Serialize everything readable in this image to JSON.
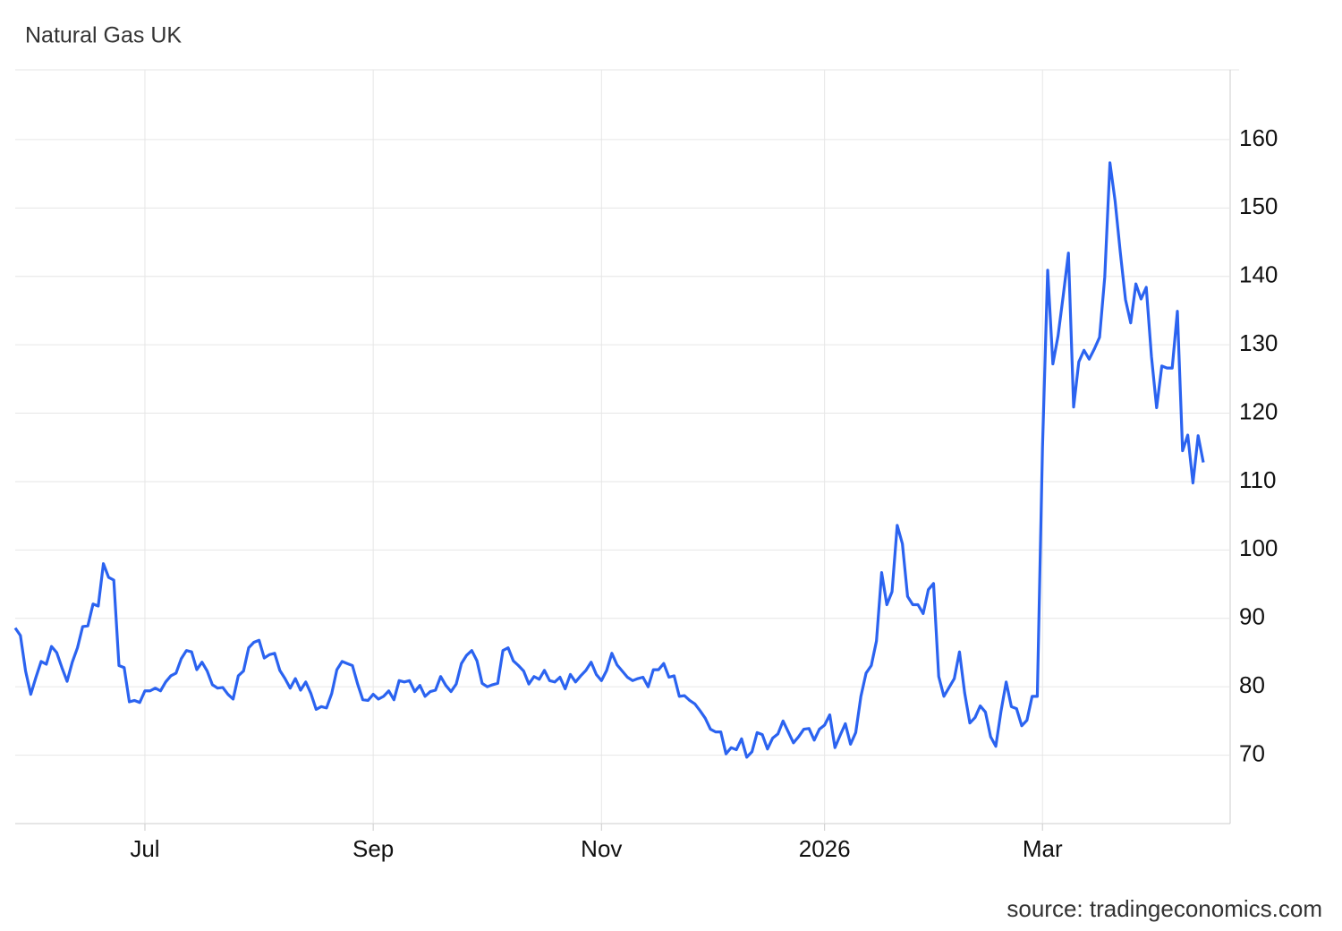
{
  "chart_data": {
    "type": "line",
    "title": "Natural Gas UK",
    "source": "source: tradingeconomics.com",
    "categories": [
      null,
      null,
      null,
      null,
      null,
      null,
      null,
      null,
      null,
      null,
      null,
      null,
      null,
      null,
      null,
      null,
      null,
      null,
      null,
      null,
      null,
      null,
      null,
      null,
      null,
      "Jul",
      null,
      null,
      null,
      null,
      null,
      null,
      null,
      null,
      null,
      null,
      null,
      null,
      null,
      null,
      null,
      null,
      null,
      null,
      null,
      null,
      null,
      null,
      null,
      null,
      null,
      null,
      null,
      null,
      null,
      null,
      null,
      null,
      null,
      null,
      null,
      null,
      null,
      null,
      null,
      null,
      null,
      null,
      null,
      "Sep",
      null,
      null,
      null,
      null,
      null,
      null,
      null,
      null,
      null,
      null,
      null,
      null,
      null,
      null,
      null,
      null,
      null,
      null,
      null,
      null,
      null,
      null,
      null,
      null,
      null,
      null,
      null,
      null,
      null,
      null,
      null,
      null,
      null,
      null,
      null,
      null,
      null,
      null,
      null,
      null,
      null,
      null,
      null,
      "Nov",
      null,
      null,
      null,
      null,
      null,
      null,
      null,
      null,
      null,
      null,
      null,
      null,
      null,
      null,
      null,
      null,
      null,
      null,
      null,
      null,
      null,
      null,
      null,
      null,
      null,
      null,
      null,
      null,
      null,
      null,
      null,
      null,
      null,
      null,
      null,
      null,
      null,
      null,
      null,
      null,
      null,
      null,
      "2026",
      null,
      null,
      null,
      null,
      null,
      null,
      null,
      null,
      null,
      null,
      null,
      null,
      null,
      null,
      null,
      null,
      null,
      null,
      null,
      null,
      null,
      null,
      null,
      null,
      null,
      null,
      null,
      null,
      null,
      null,
      null,
      null,
      null,
      null,
      null,
      null,
      null,
      null,
      null,
      null,
      null,
      "Mar",
      null,
      null,
      null,
      null,
      null,
      null,
      null,
      null,
      null,
      null,
      null,
      null,
      null,
      null,
      null,
      null,
      null,
      null,
      null,
      null,
      null,
      null,
      null,
      null,
      null,
      null,
      null,
      null,
      null,
      null,
      null
    ],
    "series": [
      {
        "name": "Natural Gas UK",
        "color": "#2b63f0",
        "values": [
          88.6,
          87.5,
          82.3,
          78.9,
          81.4,
          83.7,
          83.3,
          85.9,
          85,
          82.8,
          80.8,
          83.6,
          85.7,
          88.8,
          88.9,
          92.1,
          91.8,
          98,
          96,
          95.6,
          83.1,
          82.8,
          77.8,
          78,
          77.7,
          79.4,
          79.4,
          79.8,
          79.4,
          80.7,
          81.6,
          82,
          84.1,
          85.3,
          85.1,
          82.5,
          83.6,
          82.3,
          80.3,
          79.8,
          79.9,
          78.9,
          78.2,
          81.6,
          82.3,
          85.7,
          86.5,
          86.8,
          84.2,
          84.7,
          84.9,
          82.4,
          81.2,
          79.8,
          81.2,
          79.5,
          80.7,
          79,
          76.7,
          77.1,
          76.9,
          79,
          82.5,
          83.7,
          83.4,
          83.1,
          80.4,
          78.1,
          78,
          78.9,
          78.2,
          78.6,
          79.4,
          78.1,
          80.9,
          80.7,
          80.9,
          79.3,
          80.2,
          78.6,
          79.3,
          79.5,
          81.5,
          80.2,
          79.3,
          80.4,
          83.4,
          84.6,
          85.3,
          83.8,
          80.5,
          80,
          80.3,
          80.5,
          85.3,
          85.7,
          83.8,
          83.1,
          82.3,
          80.4,
          81.5,
          81.1,
          82.4,
          80.9,
          80.7,
          81.4,
          79.7,
          81.8,
          80.7,
          81.6,
          82.4,
          83.6,
          81.8,
          80.9,
          82.4,
          84.9,
          83.2,
          82.3,
          81.4,
          80.9,
          81.2,
          81.4,
          80,
          82.5,
          82.5,
          83.4,
          81.4,
          81.6,
          78.6,
          78.7,
          78,
          77.5,
          76.5,
          75.4,
          73.8,
          73.4,
          73.4,
          70.2,
          71.1,
          70.8,
          72.4,
          69.7,
          70.5,
          73.3,
          73,
          70.9,
          72.5,
          73.1,
          75,
          73.4,
          71.8,
          72.7,
          73.8,
          73.9,
          72.2,
          73.8,
          74.4,
          75.9,
          71.1,
          72.9,
          74.6,
          71.6,
          73.3,
          78.6,
          82,
          83.1,
          86.7,
          96.7,
          92,
          93.9,
          103.6,
          100.9,
          93.2,
          92,
          92,
          90.7,
          94.2,
          95.1,
          81.5,
          78.6,
          79.9,
          81.2,
          85.1,
          79.1,
          74.7,
          75.5,
          77.2,
          76.3,
          72.7,
          71.3,
          76.4,
          80.7,
          77.1,
          76.8,
          74.3,
          75.1,
          78.6,
          78.6,
          115,
          140.9,
          127.2,
          131.3,
          137.2,
          143.4,
          120.9,
          127.5,
          129.2,
          127.9,
          129.4,
          131.1,
          139.9,
          156.6,
          151,
          143.5,
          136.6,
          133.2,
          138.9,
          136.7,
          138.4,
          128.3,
          120.8,
          126.9,
          126.6,
          126.6,
          134.9,
          114.5,
          116.8,
          109.8,
          116.7,
          112.8
        ]
      }
    ],
    "ylim": [
      60,
      170.2
    ],
    "yticks": [
      70,
      80,
      90,
      100,
      110,
      120,
      130,
      140,
      150,
      160
    ],
    "grid": true
  }
}
